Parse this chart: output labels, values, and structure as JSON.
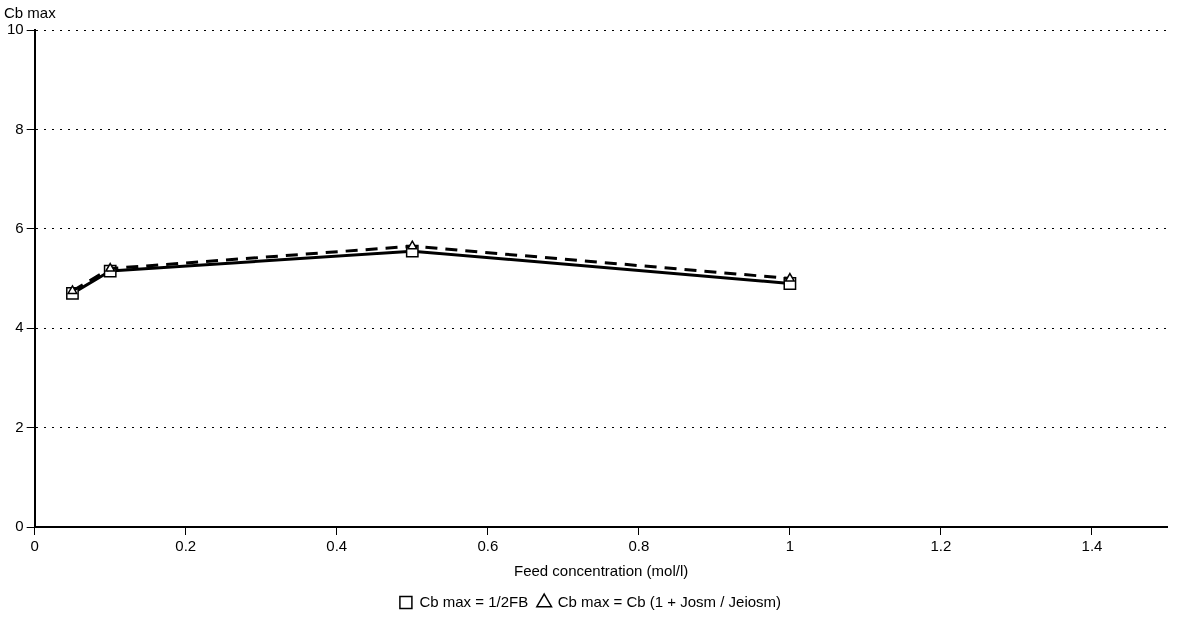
{
  "chart_data": {
    "type": "line",
    "xlabel": "Feed concentration (mol/l)",
    "ylabel": "Cb max",
    "xlim": [
      0,
      1.5
    ],
    "xticks": [
      0,
      0.2,
      0.4,
      0.6,
      0.8,
      1,
      1.2,
      1.4
    ],
    "ylim": [
      0,
      10
    ],
    "yticks": [
      0,
      2,
      4,
      6,
      8,
      10
    ],
    "grid": "y",
    "legend": "bottom",
    "series": [
      {
        "name": "Cb max = 1/2FB",
        "color": "#000000",
        "x": [
          0.05,
          0.1,
          0.5,
          1.0
        ],
        "values": [
          4.7,
          5.15,
          5.55,
          4.9
        ],
        "marker": "square",
        "line_style": "solid"
      },
      {
        "name": "Cb max = Cb (1 + Josm / Jeiosm)",
        "color": "#000000",
        "x": [
          0.05,
          0.1,
          0.5,
          1.0
        ],
        "values": [
          4.75,
          5.2,
          5.65,
          5.0
        ],
        "marker": "triangle",
        "line_style": "dashed"
      }
    ]
  }
}
